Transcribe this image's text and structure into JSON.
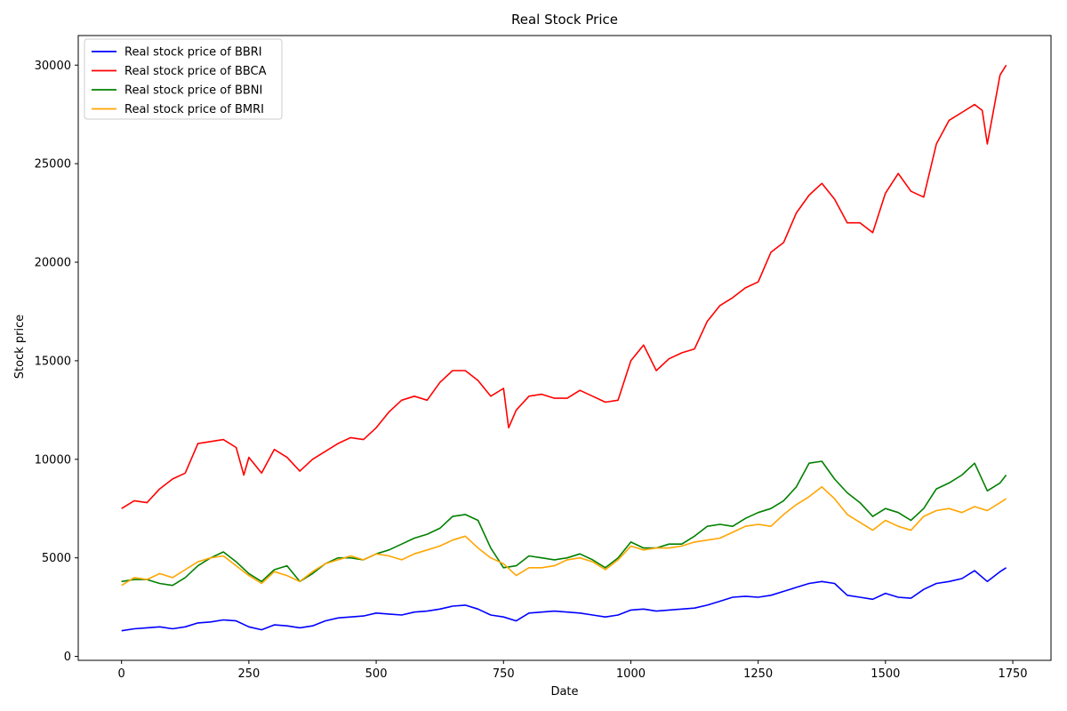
{
  "chart_data": {
    "type": "line",
    "title": "Real Stock Price",
    "xlabel": "Date",
    "ylabel": "Stock price",
    "xlim": [
      -85,
      1825
    ],
    "ylim": [
      -200,
      31500
    ],
    "x_ticks": [
      0,
      250,
      500,
      750,
      1000,
      1250,
      1500,
      1750
    ],
    "y_ticks": [
      0,
      5000,
      10000,
      15000,
      20000,
      25000,
      30000
    ],
    "grid": false,
    "legend_position": "top-left",
    "series": [
      {
        "name": "Real stock price of BBRI",
        "color": "#0000ff",
        "x": [
          0,
          25,
          50,
          75,
          100,
          125,
          150,
          175,
          200,
          225,
          250,
          275,
          300,
          325,
          350,
          375,
          400,
          425,
          450,
          475,
          500,
          525,
          550,
          575,
          600,
          625,
          650,
          675,
          700,
          725,
          750,
          775,
          800,
          825,
          850,
          875,
          900,
          925,
          950,
          975,
          1000,
          1025,
          1050,
          1075,
          1100,
          1125,
          1150,
          1175,
          1200,
          1225,
          1250,
          1275,
          1300,
          1325,
          1350,
          1375,
          1400,
          1425,
          1450,
          1475,
          1500,
          1525,
          1550,
          1575,
          1600,
          1625,
          1650,
          1675,
          1700,
          1725,
          1737
        ],
        "y": [
          1300,
          1400,
          1450,
          1500,
          1400,
          1500,
          1700,
          1750,
          1850,
          1800,
          1500,
          1350,
          1600,
          1550,
          1450,
          1550,
          1800,
          1950,
          2000,
          2050,
          2200,
          2150,
          2100,
          2250,
          2300,
          2400,
          2550,
          2600,
          2400,
          2100,
          2000,
          1800,
          2200,
          2250,
          2300,
          2250,
          2200,
          2100,
          2000,
          2100,
          2350,
          2400,
          2300,
          2350,
          2400,
          2450,
          2600,
          2800,
          3000,
          3050,
          3000,
          3100,
          3300,
          3500,
          3700,
          3800,
          3700,
          3100,
          3000,
          2900,
          3200,
          3000,
          2950,
          3400,
          3700,
          3800,
          3950,
          4350,
          3800,
          4300,
          4500
        ]
      },
      {
        "name": "Real stock price of BBCA",
        "color": "#ff0000",
        "x": [
          0,
          25,
          50,
          75,
          100,
          125,
          150,
          175,
          200,
          225,
          240,
          250,
          275,
          300,
          325,
          350,
          375,
          400,
          425,
          450,
          475,
          500,
          525,
          550,
          575,
          600,
          625,
          650,
          675,
          700,
          725,
          750,
          760,
          775,
          800,
          825,
          850,
          875,
          900,
          925,
          950,
          975,
          1000,
          1025,
          1050,
          1075,
          1100,
          1125,
          1150,
          1175,
          1200,
          1225,
          1250,
          1275,
          1300,
          1325,
          1350,
          1375,
          1400,
          1425,
          1450,
          1475,
          1500,
          1525,
          1550,
          1575,
          1600,
          1625,
          1650,
          1675,
          1690,
          1700,
          1725,
          1737
        ],
        "y": [
          7500,
          7900,
          7800,
          8500,
          9000,
          9300,
          10800,
          10900,
          11000,
          10600,
          9200,
          10100,
          9300,
          10500,
          10100,
          9400,
          10000,
          10400,
          10800,
          11100,
          11000,
          11600,
          12400,
          13000,
          13200,
          13000,
          13900,
          14500,
          14500,
          14000,
          13200,
          13600,
          11600,
          12500,
          13200,
          13300,
          13100,
          13100,
          13500,
          13200,
          12900,
          13000,
          15000,
          15800,
          14500,
          15100,
          15400,
          15600,
          17000,
          17800,
          18200,
          18700,
          19000,
          20500,
          21000,
          22500,
          23400,
          24000,
          23200,
          22000,
          22000,
          21500,
          23500,
          24500,
          23600,
          23300,
          26000,
          27200,
          27600,
          28000,
          27700,
          26000,
          29500,
          30000
        ]
      },
      {
        "name": "Real stock price of BBNI",
        "color": "#008000",
        "x": [
          0,
          25,
          50,
          75,
          100,
          125,
          150,
          175,
          200,
          225,
          250,
          275,
          300,
          325,
          350,
          375,
          400,
          425,
          450,
          475,
          500,
          525,
          550,
          575,
          600,
          625,
          650,
          675,
          700,
          725,
          750,
          775,
          800,
          825,
          850,
          875,
          900,
          925,
          950,
          975,
          1000,
          1025,
          1050,
          1075,
          1100,
          1125,
          1150,
          1175,
          1200,
          1225,
          1250,
          1275,
          1300,
          1325,
          1350,
          1375,
          1400,
          1425,
          1450,
          1475,
          1500,
          1525,
          1550,
          1575,
          1600,
          1625,
          1650,
          1675,
          1700,
          1725,
          1737
        ],
        "y": [
          3800,
          3900,
          3900,
          3700,
          3600,
          4000,
          4600,
          5000,
          5300,
          4800,
          4200,
          3800,
          4400,
          4600,
          3800,
          4200,
          4700,
          5000,
          5000,
          4900,
          5200,
          5400,
          5700,
          6000,
          6200,
          6500,
          7100,
          7200,
          6900,
          5500,
          4500,
          4600,
          5100,
          5000,
          4900,
          5000,
          5200,
          4900,
          4500,
          5000,
          5800,
          5500,
          5500,
          5700,
          5700,
          6100,
          6600,
          6700,
          6600,
          7000,
          7300,
          7500,
          7900,
          8600,
          9800,
          9900,
          9000,
          8300,
          7800,
          7100,
          7500,
          7300,
          6900,
          7500,
          8500,
          8800,
          9200,
          9800,
          8400,
          8800,
          9200
        ]
      },
      {
        "name": "Real stock price of BMRI",
        "color": "#ffa500",
        "x": [
          0,
          25,
          50,
          75,
          100,
          125,
          150,
          175,
          200,
          225,
          250,
          275,
          300,
          325,
          350,
          375,
          400,
          425,
          450,
          475,
          500,
          525,
          550,
          575,
          600,
          625,
          650,
          675,
          700,
          725,
          750,
          775,
          800,
          825,
          850,
          875,
          900,
          925,
          950,
          975,
          1000,
          1025,
          1050,
          1075,
          1100,
          1125,
          1150,
          1175,
          1200,
          1225,
          1250,
          1275,
          1300,
          1325,
          1350,
          1375,
          1400,
          1425,
          1450,
          1475,
          1500,
          1525,
          1550,
          1575,
          1600,
          1625,
          1650,
          1675,
          1700,
          1725,
          1737
        ],
        "y": [
          3600,
          4000,
          3900,
          4200,
          4000,
          4400,
          4800,
          5000,
          5100,
          4600,
          4100,
          3700,
          4300,
          4100,
          3800,
          4300,
          4700,
          4900,
          5100,
          4900,
          5200,
          5100,
          4900,
          5200,
          5400,
          5600,
          5900,
          6100,
          5500,
          5000,
          4700,
          4100,
          4500,
          4500,
          4600,
          4900,
          5000,
          4800,
          4400,
          4900,
          5600,
          5400,
          5500,
          5500,
          5600,
          5800,
          5900,
          6000,
          6300,
          6600,
          6700,
          6600,
          7200,
          7700,
          8100,
          8600,
          8000,
          7200,
          6800,
          6400,
          6900,
          6600,
          6400,
          7100,
          7400,
          7500,
          7300,
          7600,
          7400,
          7800,
          8000
        ]
      }
    ]
  }
}
